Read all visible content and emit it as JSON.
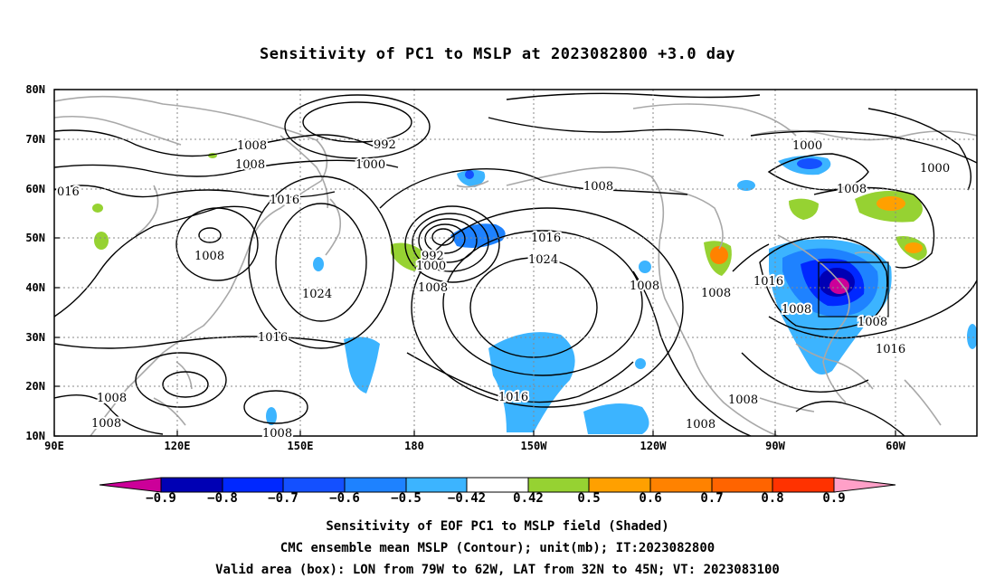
{
  "title": "Sensitivity of PC1 to MSLP at 2023082800 +3.0 day",
  "lat_labels": [
    "80N",
    "70N",
    "60N",
    "50N",
    "40N",
    "30N",
    "20N",
    "10N"
  ],
  "lon_labels": [
    "90E",
    "120E",
    "150E",
    "180",
    "150W",
    "120W",
    "90W",
    "60W"
  ],
  "contour_labels": [
    {
      "text": "1008"
    },
    {
      "text": "1008"
    },
    {
      "text": "992"
    },
    {
      "text": "1000"
    },
    {
      "text": "016"
    },
    {
      "text": "1016"
    },
    {
      "text": "1008"
    },
    {
      "text": "1024"
    },
    {
      "text": "992"
    },
    {
      "text": "1000"
    },
    {
      "text": "1008"
    },
    {
      "text": "1008"
    },
    {
      "text": "1016"
    },
    {
      "text": "1024"
    },
    {
      "text": "1008"
    },
    {
      "text": "1008"
    },
    {
      "text": "1000"
    },
    {
      "text": "1000"
    },
    {
      "text": "1008"
    },
    {
      "text": "1016"
    },
    {
      "text": "1008"
    },
    {
      "text": "1008"
    },
    {
      "text": "1016"
    },
    {
      "text": "1016"
    },
    {
      "text": "1008"
    },
    {
      "text": "1008"
    },
    {
      "text": "1008"
    },
    {
      "text": "1016"
    },
    {
      "text": "1008"
    },
    {
      "text": "1008"
    }
  ],
  "colorbar": {
    "labels": [
      "-0.9",
      "-0.8",
      "-0.7",
      "-0.6",
      "-0.5",
      "-0.42",
      "0.42",
      "0.5",
      "0.6",
      "0.7",
      "0.8",
      "0.9"
    ],
    "colors": [
      "#cc0099",
      "#0000b4",
      "#0028ff",
      "#1450ff",
      "#1e82ff",
      "#3cb4ff",
      "#00d2ff",
      "#ffffff",
      "#96d232",
      "#ffa000",
      "#ff8200",
      "#ff6400",
      "#ff3200",
      "#ff0000",
      "#ffa0c8"
    ]
  },
  "captions": [
    "Sensitivity of EOF PC1 to MSLP field (Shaded)",
    "CMC ensemble mean MSLP (Contour); unit(mb); IT:2023082800",
    "Valid area (box): LON from 79W to 62W, LAT from 32N to 45N; VT: 2023083100"
  ],
  "valid_area": {
    "lon_from": "79W",
    "lon_to": "62W",
    "lat_from": "32N",
    "lat_to": "45N"
  }
}
